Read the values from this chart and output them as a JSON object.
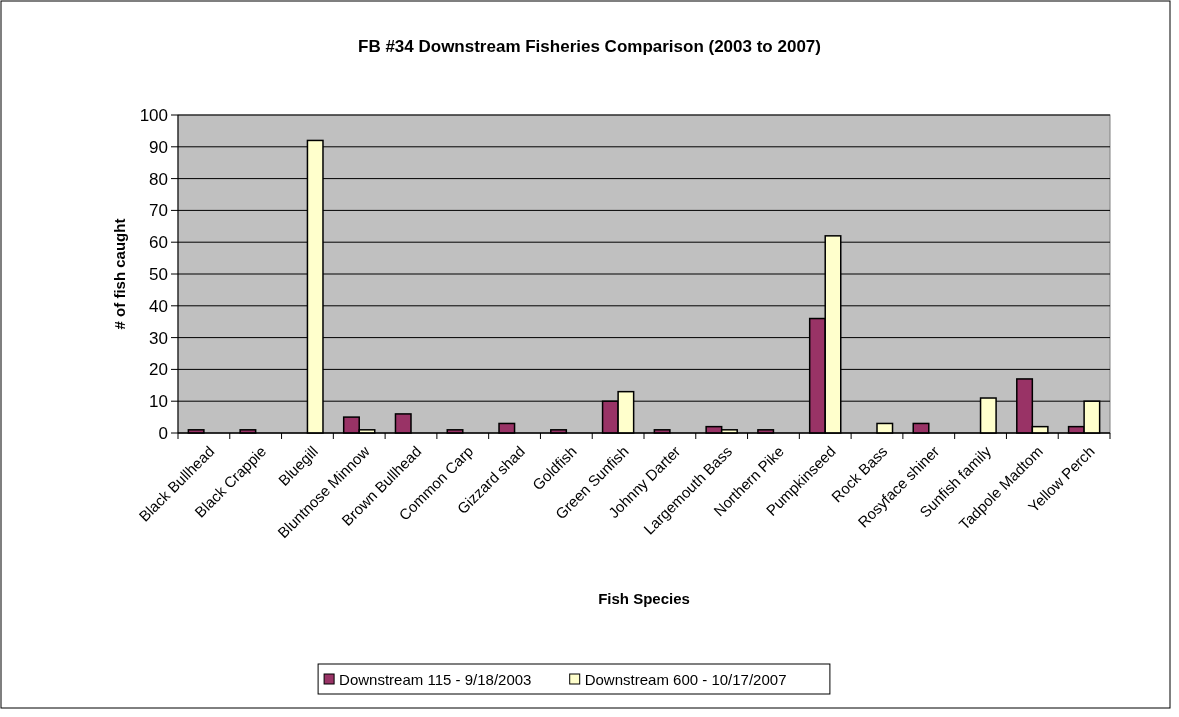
{
  "chart_data": {
    "type": "bar",
    "title": "FB #34 Downstream Fisheries Comparison (2003 to 2007)",
    "xlabel": "Fish Species",
    "ylabel": "# of fish caught",
    "categories": [
      "Black Bullhead",
      "Black Crappie",
      "Bluegill",
      "Bluntnose Minnow",
      "Brown Bullhead",
      "Common Carp",
      "Gizzard shad",
      "Goldfish",
      "Green Sunfish",
      "Johnny Darter",
      "Largemouth Bass",
      "Northern Pike",
      "Pumpkinseed",
      "Rock Bass",
      "Rosyface shiner",
      "Sunfish family",
      "Tadpole Madtom",
      "Yellow Perch"
    ],
    "series": [
      {
        "name": "Downstream 115 - 9/18/2003",
        "color": "#993366",
        "values": [
          1,
          1,
          null,
          5,
          6,
          1,
          3,
          1,
          10,
          1,
          2,
          1,
          36,
          null,
          3,
          null,
          17,
          2
        ]
      },
      {
        "name": "Downstream 600 - 10/17/2007",
        "color": "#ffffcc",
        "values": [
          null,
          null,
          92,
          1,
          null,
          null,
          null,
          null,
          13,
          null,
          1,
          null,
          62,
          3,
          null,
          11,
          2,
          10
        ]
      }
    ],
    "ylim": [
      0,
      100
    ],
    "yticks": [
      0,
      10,
      20,
      30,
      40,
      50,
      60,
      70,
      80,
      90,
      100
    ],
    "grid": "y",
    "legend": "bottom"
  }
}
